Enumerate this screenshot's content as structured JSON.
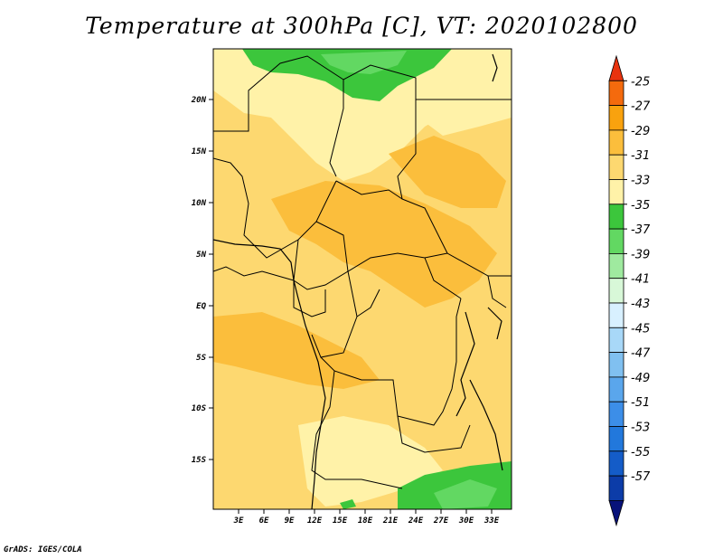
{
  "title": "Temperature at 300hPa [C], VT: 2020102800",
  "credit": "GrADS: IGES/COLA",
  "map": {
    "lat_labels": [
      "20N",
      "15N",
      "10N",
      "5N",
      "EQ",
      "5S",
      "10S",
      "15S"
    ],
    "lon_labels": [
      "3E",
      "6E",
      "9E",
      "12E",
      "15E",
      "18E",
      "21E",
      "24E",
      "27E",
      "30E",
      "33E"
    ]
  },
  "colorbar": {
    "labels": [
      "-25",
      "-27",
      "-29",
      "-31",
      "-33",
      "-35",
      "-37",
      "-39",
      "-41",
      "-43",
      "-45",
      "-47",
      "-49",
      "-51",
      "-53",
      "-55",
      "-57"
    ],
    "colors": [
      "#e8330e",
      "#f46a0d",
      "#f9a20e",
      "#fbbe3c",
      "#fdd870",
      "#fff2a8",
      "#3cc63c",
      "#62d862",
      "#9fea9f",
      "#d8f8d8",
      "#d8f0ff",
      "#a8d8f8",
      "#80c0f0",
      "#5aa6ec",
      "#3c8ee8",
      "#2278dc",
      "#145cc8",
      "#0c3ca8",
      "#08127a"
    ]
  },
  "field": {
    "colors": {
      "c33": "#fdd870",
      "c31": "#fbbe3c",
      "c35": "#fff2a8",
      "c37": "#3cc63c",
      "c39": "#62d862"
    }
  }
}
